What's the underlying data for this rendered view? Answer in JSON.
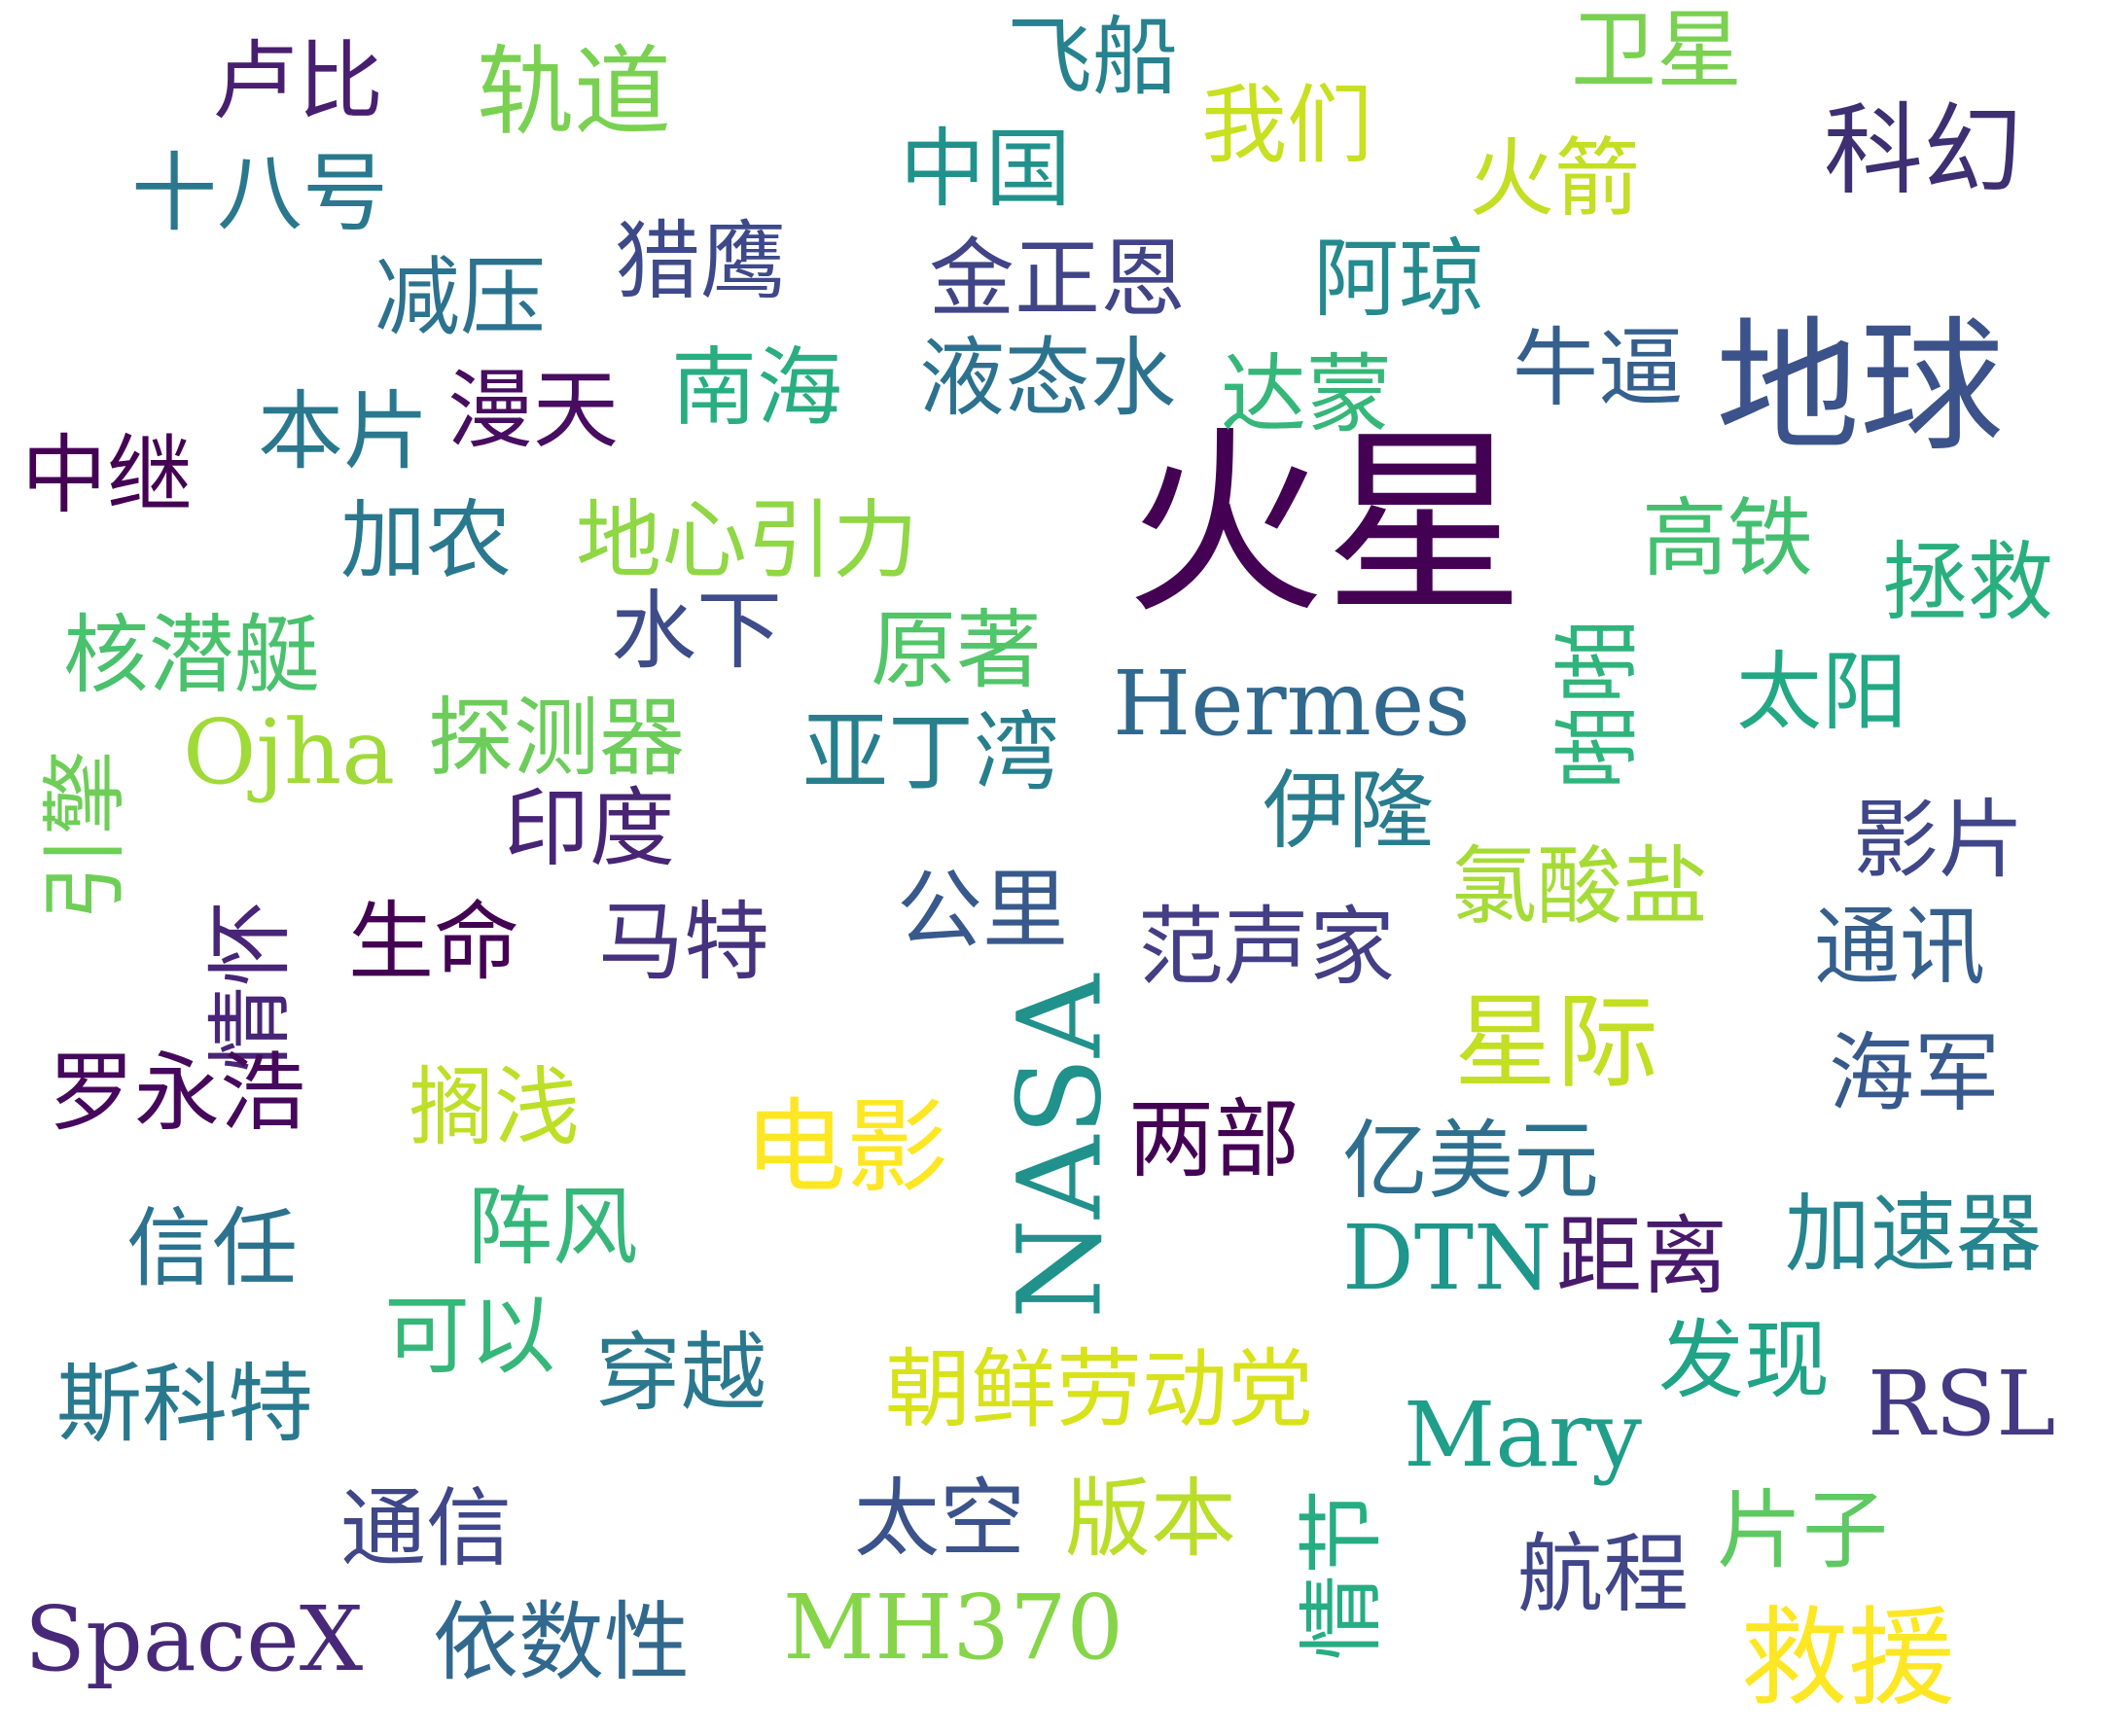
{
  "palette": {
    "background": "#ffffff",
    "note": "viridis colormap — dark purple to yellow"
  },
  "words": [
    {
      "text": "火星",
      "color": "#440154"
    },
    {
      "text": "地球",
      "color": "#3b528b"
    },
    {
      "text": "NASA",
      "color": "#21918c"
    },
    {
      "text": "Hermes",
      "color": "#31688e"
    },
    {
      "text": "科幻",
      "color": "#3e2f72"
    },
    {
      "text": "救援",
      "color": "#fde725"
    },
    {
      "text": "星际",
      "color": "#c2df23"
    },
    {
      "text": "电影",
      "color": "#fde725"
    },
    {
      "text": "轨道",
      "color": "#7ad151"
    },
    {
      "text": "MH370",
      "color": "#86d549"
    },
    {
      "text": "Mary",
      "color": "#1f9e89"
    },
    {
      "text": "DTN",
      "color": "#1f968b"
    },
    {
      "text": "RSL",
      "color": "#443983"
    },
    {
      "text": "SpaceX",
      "color": "#482878"
    },
    {
      "text": "Ojha",
      "color": "#a0da39"
    },
    {
      "text": "卢比",
      "color": "#481f70"
    },
    {
      "text": "十八号",
      "color": "#2a788e"
    },
    {
      "text": "飞船",
      "color": "#26828e"
    },
    {
      "text": "卫星",
      "color": "#7ad151"
    },
    {
      "text": "我们",
      "color": "#c8e020"
    },
    {
      "text": "中国",
      "color": "#21918c"
    },
    {
      "text": "火箭",
      "color": "#c2df23"
    },
    {
      "text": "猎鹰",
      "color": "#3e4989"
    },
    {
      "text": "减压",
      "color": "#2c728e"
    },
    {
      "text": "金正恩",
      "color": "#414487"
    },
    {
      "text": "阿琼",
      "color": "#238a8d"
    },
    {
      "text": "南海",
      "color": "#28ae80"
    },
    {
      "text": "液态水",
      "color": "#2c728e"
    },
    {
      "text": "达蒙",
      "color": "#35b779"
    },
    {
      "text": "牛逼",
      "color": "#355f8d"
    },
    {
      "text": "本片",
      "color": "#2a788e"
    },
    {
      "text": "漫天",
      "color": "#470d60"
    },
    {
      "text": "中继",
      "color": "#440154"
    },
    {
      "text": "加农",
      "color": "#2a788e"
    },
    {
      "text": "地心引力",
      "color": "#8fd744"
    },
    {
      "text": "高铁",
      "color": "#44bf70"
    },
    {
      "text": "拯救",
      "color": "#29af7f"
    },
    {
      "text": "核潜艇",
      "color": "#4ac16d"
    },
    {
      "text": "水下",
      "color": "#3e4c8a"
    },
    {
      "text": "原著",
      "color": "#52c569"
    },
    {
      "text": "啪啪",
      "color": "#2fb47c"
    },
    {
      "text": "太阳",
      "color": "#22a884"
    },
    {
      "text": "探测器",
      "color": "#6ccd5a"
    },
    {
      "text": "亚丁湾",
      "color": "#277f8e"
    },
    {
      "text": "引擎",
      "color": "#6ece58"
    },
    {
      "text": "印度",
      "color": "#482475"
    },
    {
      "text": "伊隆",
      "color": "#287c8e"
    },
    {
      "text": "影片",
      "color": "#3f4788"
    },
    {
      "text": "氯酸盐",
      "color": "#a5db36"
    },
    {
      "text": "情怀",
      "color": "#482576"
    },
    {
      "text": "生命",
      "color": "#440154"
    },
    {
      "text": "马特",
      "color": "#46327e"
    },
    {
      "text": "公里",
      "color": "#38598c"
    },
    {
      "text": "范声家",
      "color": "#433e85"
    },
    {
      "text": "通讯",
      "color": "#355f8d"
    },
    {
      "text": "罗永浩",
      "color": "#46085c"
    },
    {
      "text": "搁浅",
      "color": "#bddf26"
    },
    {
      "text": "两部",
      "color": "#440154"
    },
    {
      "text": "亿美元",
      "color": "#2e6f8e"
    },
    {
      "text": "海军",
      "color": "#38598c"
    },
    {
      "text": "信任",
      "color": "#2c728e"
    },
    {
      "text": "阵风",
      "color": "#35b779"
    },
    {
      "text": "距离",
      "color": "#481a6c"
    },
    {
      "text": "加速器",
      "color": "#25848e"
    },
    {
      "text": "可以",
      "color": "#35b779"
    },
    {
      "text": "穿越",
      "color": "#2a788e"
    },
    {
      "text": "朝鲜劳动党",
      "color": "#d8e219"
    },
    {
      "text": "发现",
      "color": "#20a386"
    },
    {
      "text": "斯科特",
      "color": "#29798e"
    },
    {
      "text": "通信",
      "color": "#3f4788"
    },
    {
      "text": "太空",
      "color": "#3b528b"
    },
    {
      "text": "版本",
      "color": "#bade28"
    },
    {
      "text": "情节",
      "color": "#26ad81"
    },
    {
      "text": "片子",
      "color": "#5ec962"
    },
    {
      "text": "航程",
      "color": "#404688"
    },
    {
      "text": "依数性",
      "color": "#31688e"
    }
  ]
}
